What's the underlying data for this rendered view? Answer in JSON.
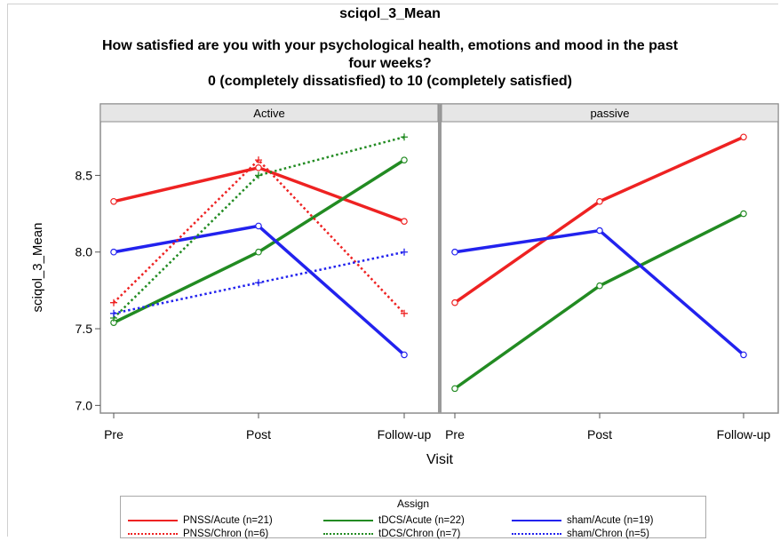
{
  "titles": {
    "line1": "sciqol_3_Mean",
    "line2": "How satisfied are you with your psychological health, emotions and mood in the past",
    "line3": "four weeks?",
    "line4": "0 (completely dissatisfied) to 10 (completely satisfied)"
  },
  "colors": {
    "red": "#ee2222",
    "green": "#228b22",
    "blue": "#2222ee",
    "panel_header_bg": "#e6e6e6",
    "divider": "#9a9a9a"
  },
  "legend": {
    "title": "Assign",
    "entries": [
      {
        "label": "PNSS/Acute (n=21)",
        "color": "#ee2222",
        "style": "solid"
      },
      {
        "label": "tDCS/Acute (n=22)",
        "color": "#228b22",
        "style": "solid"
      },
      {
        "label": "sham/Acute (n=19)",
        "color": "#2222ee",
        "style": "solid"
      },
      {
        "label": "PNSS/Chron (n=6)",
        "color": "#ee2222",
        "style": "dotted"
      },
      {
        "label": "tDCS/Chron (n=7)",
        "color": "#228b22",
        "style": "dotted"
      },
      {
        "label": "sham/Chron (n=5)",
        "color": "#2222ee",
        "style": "dotted"
      }
    ]
  },
  "chart_data": {
    "type": "line",
    "title": "sciqol_3_Mean",
    "subtitle": "How satisfied are you with your psychological health, emotions and mood in the past four weeks? 0 (completely dissatisfied) to 10 (completely satisfied)",
    "xlabel": "Visit",
    "ylabel": "sciqol_3_Mean",
    "categories": [
      "Pre",
      "Post",
      "Follow-up"
    ],
    "ylim": [
      6.95,
      8.85
    ],
    "yticks": [
      7.0,
      7.5,
      8.0,
      8.5
    ],
    "ytick_labels": [
      "7.0",
      "7.5",
      "8.0",
      "8.5"
    ],
    "grid": false,
    "legend_position": "bottom",
    "legend_title": "Assign",
    "panels": [
      {
        "name": "Active",
        "series": [
          {
            "name": "PNSS/Acute (n=21)",
            "color": "#ee2222",
            "style": "solid",
            "values": [
              8.33,
              8.55,
              8.2
            ]
          },
          {
            "name": "tDCS/Acute (n=22)",
            "color": "#228b22",
            "style": "solid",
            "values": [
              7.54,
              8.0,
              8.6
            ]
          },
          {
            "name": "sham/Acute (n=19)",
            "color": "#2222ee",
            "style": "solid",
            "values": [
              8.0,
              8.17,
              7.33
            ]
          },
          {
            "name": "PNSS/Chron (n=6)",
            "color": "#ee2222",
            "style": "dotted",
            "values": [
              7.67,
              8.6,
              7.6
            ]
          },
          {
            "name": "tDCS/Chron (n=7)",
            "color": "#228b22",
            "style": "dotted",
            "values": [
              7.57,
              8.5,
              8.75
            ]
          },
          {
            "name": "sham/Chron (n=5)",
            "color": "#2222ee",
            "style": "dotted",
            "values": [
              7.6,
              7.8,
              8.0
            ]
          }
        ]
      },
      {
        "name": "passive",
        "series": [
          {
            "name": "PNSS/Acute (n=21)",
            "color": "#ee2222",
            "style": "solid",
            "values": [
              7.67,
              8.33,
              8.75
            ]
          },
          {
            "name": "tDCS/Acute (n=22)",
            "color": "#228b22",
            "style": "solid",
            "values": [
              7.11,
              7.78,
              8.25
            ]
          },
          {
            "name": "sham/Acute (n=19)",
            "color": "#2222ee",
            "style": "solid",
            "values": [
              8.0,
              8.14,
              7.33
            ]
          }
        ]
      }
    ]
  }
}
